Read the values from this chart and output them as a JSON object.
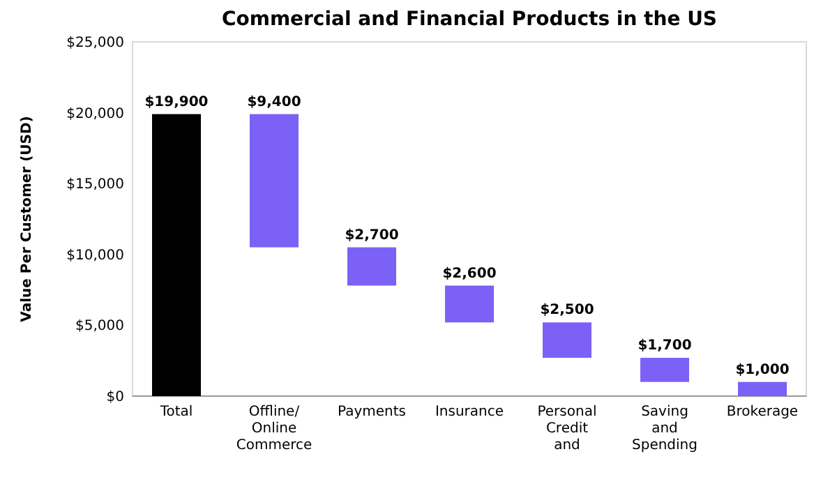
{
  "chart_data": {
    "type": "bar",
    "title": "Commercial and Financial Products in the US",
    "ylabel": "Value Per Customer (USD)",
    "categories": [
      "Total",
      "Offline/ Online Commerce",
      "Payments",
      "Insurance",
      "Personal Credit and",
      "Saving and Spending",
      "Brokerage"
    ],
    "values": [
      19900,
      9400,
      2700,
      2600,
      2500,
      1700,
      1000
    ],
    "base": [
      0,
      10500,
      7800,
      5200,
      2700,
      1000,
      0
    ],
    "colors": [
      "#000000",
      "#7b61f5",
      "#7b61f5",
      "#7b61f5",
      "#7b61f5",
      "#7b61f5",
      "#7b61f5"
    ],
    "value_labels": [
      "$19,900",
      "$9,400",
      "$2,700",
      "$2,600",
      "$2,500",
      "$1,700",
      "$1,000"
    ],
    "ylim": [
      0,
      25000
    ],
    "yticks": [
      {
        "value": 0,
        "label": "$0"
      },
      {
        "value": 5000,
        "label": "$5,000"
      },
      {
        "value": 10000,
        "label": "$10,000"
      },
      {
        "value": 15000,
        "label": "$15,000"
      },
      {
        "value": 20000,
        "label": "$20,000"
      },
      {
        "value": 25000,
        "label": "$25,000"
      }
    ],
    "grid": false
  }
}
